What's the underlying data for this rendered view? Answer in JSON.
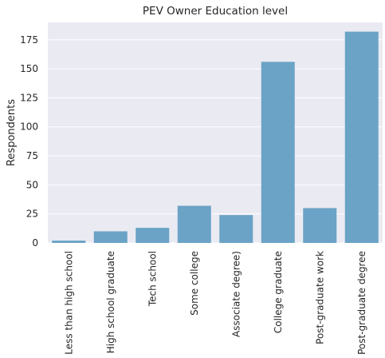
{
  "chart_data": {
    "type": "bar",
    "title": "PEV Owner Education level",
    "xlabel": "",
    "ylabel": "Respondents",
    "categories": [
      "Less than high school",
      "High school graduate",
      "Tech school",
      "Some college",
      "Associate degree)",
      "College graduate",
      "Post-graduate work",
      "Post-graduate degree"
    ],
    "values": [
      2,
      10,
      13,
      32,
      24,
      156,
      30,
      182
    ],
    "ylim": [
      0,
      190
    ],
    "yticks": [
      0,
      25,
      50,
      75,
      100,
      125,
      150,
      175
    ],
    "grid": true,
    "bar_color": "#6aa3c6",
    "background_color": "#eaeaf2"
  }
}
